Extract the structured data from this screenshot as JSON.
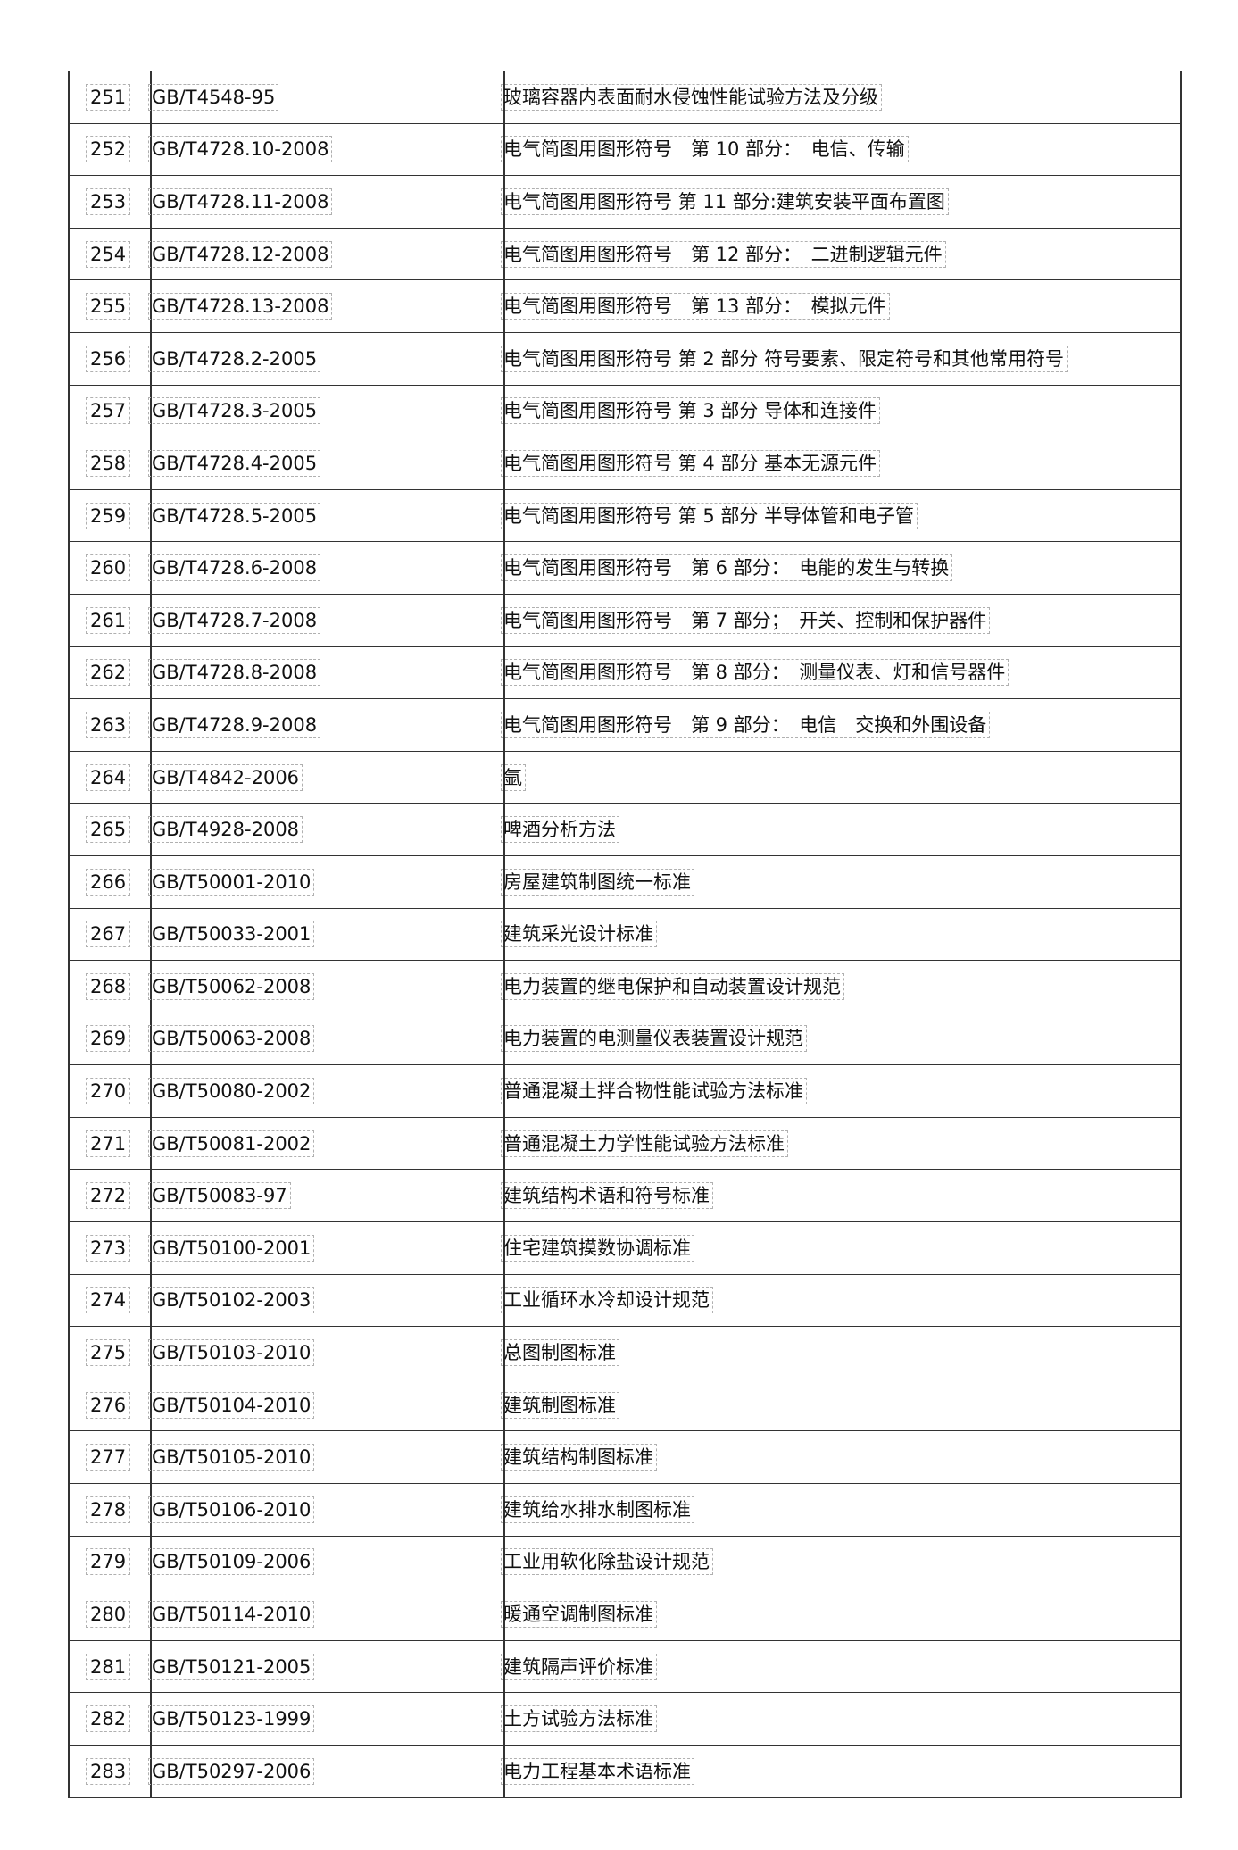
{
  "rows": [
    {
      "no": "251",
      "code": "GB/T4548-95",
      "title": "玻璃容器内表面耐水侵蚀性能试验方法及分级"
    },
    {
      "no": "252",
      "code": "GB/T4728.10-2008",
      "title": "电气简图用图形符号　第 10 部分：　电信、传输"
    },
    {
      "no": "253",
      "code": "GB/T4728.11-2008",
      "title": "电气简图用图形符号 第 11 部分:建筑安装平面布置图"
    },
    {
      "no": "254",
      "code": "GB/T4728.12-2008",
      "title": "电气简图用图形符号　第 12 部分：　二进制逻辑元件"
    },
    {
      "no": "255",
      "code": "GB/T4728.13-2008",
      "title": "电气简图用图形符号　第 13 部分：　模拟元件"
    },
    {
      "no": "256",
      "code": "GB/T4728.2-2005",
      "title": "电气简图用图形符号 第 2 部分 符号要素、限定符号和其他常用符号"
    },
    {
      "no": "257",
      "code": "GB/T4728.3-2005",
      "title": "电气简图用图形符号 第 3 部分 导体和连接件"
    },
    {
      "no": "258",
      "code": "GB/T4728.4-2005",
      "title": "电气简图用图形符号 第 4 部分 基本无源元件"
    },
    {
      "no": "259",
      "code": "GB/T4728.5-2005",
      "title": "电气简图用图形符号 第 5 部分 半导体管和电子管"
    },
    {
      "no": "260",
      "code": "GB/T4728.6-2008",
      "title": "电气简图用图形符号　第 6 部分：　电能的发生与转换"
    },
    {
      "no": "261",
      "code": "GB/T4728.7-2008",
      "title": "电气简图用图形符号　第 7 部分；　开关、控制和保护器件"
    },
    {
      "no": "262",
      "code": "GB/T4728.8-2008",
      "title": "电气简图用图形符号　第 8 部分：　测量仪表、灯和信号器件"
    },
    {
      "no": "263",
      "code": "GB/T4728.9-2008",
      "title": "电气简图用图形符号　第 9 部分：　电信　交换和外围设备"
    },
    {
      "no": "264",
      "code": "GB/T4842-2006",
      "title": "氩"
    },
    {
      "no": "265",
      "code": "GB/T4928-2008",
      "title": "啤酒分析方法"
    },
    {
      "no": "266",
      "code": "GB/T50001-2010",
      "title": "房屋建筑制图统一标准"
    },
    {
      "no": "267",
      "code": "GB/T50033-2001",
      "title": "建筑采光设计标准"
    },
    {
      "no": "268",
      "code": "GB/T50062-2008",
      "title": "电力装置的继电保护和自动装置设计规范"
    },
    {
      "no": "269",
      "code": "GB/T50063-2008",
      "title": "电力装置的电测量仪表装置设计规范"
    },
    {
      "no": "270",
      "code": "GB/T50080-2002",
      "title": "普通混凝土拌合物性能试验方法标准"
    },
    {
      "no": "271",
      "code": "GB/T50081-2002",
      "title": "普通混凝土力学性能试验方法标准"
    },
    {
      "no": "272",
      "code": "GB/T50083-97",
      "title": "建筑结构术语和符号标准"
    },
    {
      "no": "273",
      "code": "GB/T50100-2001",
      "title": "住宅建筑摸数协调标准"
    },
    {
      "no": "274",
      "code": "GB/T50102-2003",
      "title": "工业循环水冷却设计规范"
    },
    {
      "no": "275",
      "code": "GB/T50103-2010",
      "title": "总图制图标准"
    },
    {
      "no": "276",
      "code": "GB/T50104-2010",
      "title": "建筑制图标准"
    },
    {
      "no": "277",
      "code": "GB/T50105-2010",
      "title": "建筑结构制图标准"
    },
    {
      "no": "278",
      "code": "GB/T50106-2010",
      "title": "建筑给水排水制图标准"
    },
    {
      "no": "279",
      "code": "GB/T50109-2006",
      "title": "工业用软化除盐设计规范"
    },
    {
      "no": "280",
      "code": "GB/T50114-2010",
      "title": "暖通空调制图标准"
    },
    {
      "no": "281",
      "code": "GB/T50121-2005",
      "title": "建筑隔声评价标准"
    },
    {
      "no": "282",
      "code": "GB/T50123-1999",
      "title": "土方试验方法标准"
    },
    {
      "no": "283",
      "code": "GB/T50297-2006",
      "title": "电力工程基本术语标准"
    }
  ]
}
